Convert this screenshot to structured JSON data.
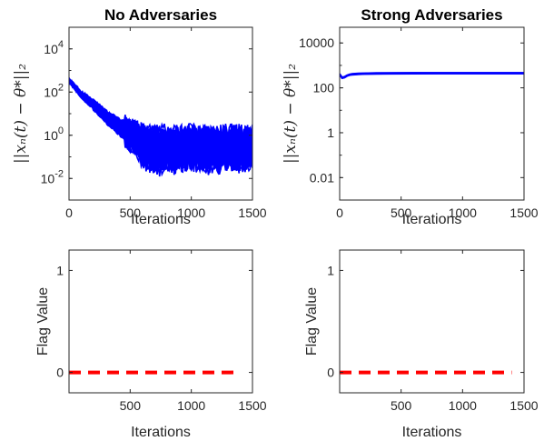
{
  "chart_data": [
    {
      "type": "line",
      "title": "No Adversaries",
      "xlabel": "Iterations",
      "ylabel": "||x_n(t) − θ*||_2",
      "ylabel_display": "||xₙ(t) − θ*||₂",
      "yscale": "log",
      "xlim": [
        0,
        1500
      ],
      "ylim": [
        0.001,
        100000
      ],
      "xticks": [
        0,
        500,
        1000,
        1500
      ],
      "yticks": [
        {
          "v": 0.01,
          "base": "10",
          "exp": "-2"
        },
        {
          "v": 1,
          "base": "10",
          "exp": "0"
        },
        {
          "v": 100,
          "base": "10",
          "exp": "2"
        },
        {
          "v": 10000,
          "base": "10",
          "exp": "4"
        }
      ],
      "series_color": "#0000ff",
      "n_agents": 40,
      "envelope": {
        "x": [
          0,
          100,
          200,
          300,
          400,
          500,
          600,
          700,
          800,
          900,
          1000,
          1100,
          1200,
          1300,
          1400,
          1500
        ],
        "upper": [
          400,
          100,
          40,
          14,
          6,
          3,
          1.5,
          1.2,
          1.3,
          1.2,
          1.4,
          1.3,
          1.2,
          1.3,
          1.2,
          1.3
        ],
        "lower": [
          300,
          60,
          16,
          4,
          1.2,
          0.4,
          0.08,
          0.03,
          0.04,
          0.04,
          0.05,
          0.04,
          0.04,
          0.05,
          0.04,
          0.05
        ]
      },
      "grid": false,
      "legend": false
    },
    {
      "type": "line",
      "title": "Strong Adversaries",
      "xlabel": "Iterations",
      "ylabel": "||x_n(t) − θ*||_2",
      "ylabel_display": "||xₙ(t) − θ*||₂",
      "yscale": "log",
      "xlim": [
        0,
        1500
      ],
      "ylim": [
        0.001,
        50000
      ],
      "xticks": [
        0,
        500,
        1000,
        1500
      ],
      "yticks": [
        {
          "v": 0.01,
          "label": "0.01"
        },
        {
          "v": 1,
          "label": "1"
        },
        {
          "v": 100,
          "label": "100"
        },
        {
          "v": 10000,
          "label": "10000"
        }
      ],
      "series_color": "#0000ff",
      "x": [
        0,
        20,
        40,
        60,
        80,
        100,
        150,
        200,
        300,
        400,
        600,
        800,
        1000,
        1200,
        1500
      ],
      "y": [
        400,
        280,
        300,
        350,
        380,
        400,
        420,
        430,
        440,
        445,
        448,
        450,
        450,
        450,
        450
      ],
      "grid": false,
      "legend": false
    },
    {
      "type": "line",
      "title": "",
      "xlabel": "Iterations",
      "ylabel": "Flag Value",
      "xlim": [
        0,
        1500
      ],
      "ylim": [
        -0.2,
        1.2
      ],
      "xticks": [
        500,
        1000,
        1500
      ],
      "yticks": [
        0,
        1
      ],
      "series_color": "#ff0000",
      "line_style": "dashed",
      "x": [
        0,
        1400
      ],
      "y": [
        0,
        0
      ],
      "grid": false,
      "legend": false
    },
    {
      "type": "line",
      "title": "",
      "xlabel": "Iterations",
      "ylabel": "Flag Value",
      "xlim": [
        0,
        1500
      ],
      "ylim": [
        -0.2,
        1.2
      ],
      "xticks": [
        500,
        1000,
        1500
      ],
      "yticks": [
        0,
        1
      ],
      "series_color": "#ff0000",
      "line_style": "dashed",
      "x": [
        0,
        1400
      ],
      "y": [
        0,
        0
      ],
      "grid": false,
      "legend": false
    }
  ]
}
